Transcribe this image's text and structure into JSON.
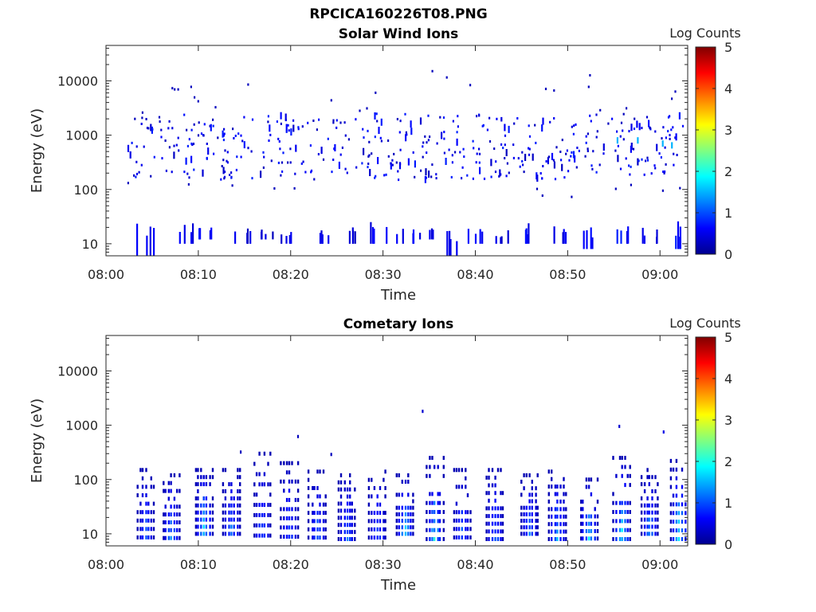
{
  "figure_title": "RPCICA160226T08.PNG",
  "chart_data": [
    {
      "type": "heatmap",
      "title": "Solar Wind Ions",
      "xlabel": "Time",
      "ylabel": "Energy (eV)",
      "x_ticks": [
        "08:00",
        "08:10",
        "08:20",
        "08:30",
        "08:40",
        "08:50",
        "09:00"
      ],
      "xlim": [
        "08:00",
        "09:03"
      ],
      "y_ticks": [
        "10",
        "100",
        "1000",
        "10000"
      ],
      "ylim": [
        6,
        45000
      ],
      "y_scale": "log",
      "colorbar": {
        "label": "Log Counts",
        "ticks": [
          "0",
          "1",
          "2",
          "3",
          "4",
          "5"
        ],
        "range": [
          0,
          5
        ],
        "colormap": "jet"
      },
      "low_energy_clusters": [
        {
          "t": 4.0,
          "e_lo": 6,
          "e_hi": 26,
          "v": 0.4
        },
        {
          "t": 8.5,
          "e_lo": 10,
          "e_hi": 26,
          "v": 0.4
        },
        {
          "t": 10.5,
          "e_lo": 12,
          "e_hi": 26,
          "v": 0.5
        },
        {
          "t": 14.5,
          "e_lo": 10,
          "e_hi": 22,
          "v": 0.3
        },
        {
          "t": 17.0,
          "e_lo": 12,
          "e_hi": 20,
          "v": 0.3
        },
        {
          "t": 20.0,
          "e_lo": 10,
          "e_hi": 20,
          "v": 0.3
        },
        {
          "t": 23.0,
          "e_lo": 10,
          "e_hi": 20,
          "v": 0.4
        },
        {
          "t": 26.0,
          "e_lo": 10,
          "e_hi": 20,
          "v": 0.3
        },
        {
          "t": 29.5,
          "e_lo": 10,
          "e_hi": 26,
          "v": 0.4
        },
        {
          "t": 32.5,
          "e_lo": 10,
          "e_hi": 20,
          "v": 0.4
        },
        {
          "t": 35.0,
          "e_lo": 12,
          "e_hi": 20,
          "v": 0.3
        },
        {
          "t": 37.5,
          "e_lo": 6,
          "e_hi": 22,
          "v": 0.4
        },
        {
          "t": 40.0,
          "e_lo": 10,
          "e_hi": 24,
          "v": 0.4
        },
        {
          "t": 43.0,
          "e_lo": 10,
          "e_hi": 20,
          "v": 0.3
        },
        {
          "t": 46.0,
          "e_lo": 10,
          "e_hi": 24,
          "v": 0.4
        },
        {
          "t": 49.0,
          "e_lo": 10,
          "e_hi": 24,
          "v": 0.4
        },
        {
          "t": 52.0,
          "e_lo": 8,
          "e_hi": 26,
          "v": 0.5
        },
        {
          "t": 55.5,
          "e_lo": 10,
          "e_hi": 26,
          "v": 0.5
        },
        {
          "t": 58.5,
          "e_lo": 10,
          "e_hi": 20,
          "v": 0.3
        },
        {
          "t": 61.5,
          "e_lo": 8,
          "e_hi": 28,
          "v": 0.5
        }
      ],
      "high_energy_band": {
        "e_lo": 150,
        "e_hi": 2500,
        "v": 0.3
      }
    },
    {
      "type": "heatmap",
      "title": "Cometary Ions",
      "xlabel": "Time",
      "ylabel": "Energy (eV)",
      "x_ticks": [
        "08:00",
        "08:10",
        "08:20",
        "08:30",
        "08:40",
        "08:50",
        "09:00"
      ],
      "xlim": [
        "08:00",
        "09:03"
      ],
      "y_ticks": [
        "10",
        "100",
        "1000",
        "10000"
      ],
      "ylim": [
        6,
        45000
      ],
      "y_scale": "log",
      "colorbar": {
        "label": "Log Counts",
        "ticks": [
          "0",
          "1",
          "2",
          "3",
          "4",
          "5"
        ],
        "range": [
          0,
          5
        ],
        "colormap": "jet"
      },
      "bursts": [
        {
          "t": 4.2,
          "e_lo": 6,
          "e_hi": 150,
          "peak": 1.0
        },
        {
          "t": 7.0,
          "e_lo": 6,
          "e_hi": 120,
          "peak": 1.3
        },
        {
          "t": 10.5,
          "e_lo": 10,
          "e_hi": 150,
          "peak": 1.6
        },
        {
          "t": 13.5,
          "e_lo": 10,
          "e_hi": 150,
          "peak": 1.0
        },
        {
          "t": 16.8,
          "e_lo": 6,
          "e_hi": 300,
          "peak": 1.0
        },
        {
          "t": 19.8,
          "e_lo": 6,
          "e_hi": 200,
          "peak": 1.0
        },
        {
          "t": 22.8,
          "e_lo": 6,
          "e_hi": 140,
          "peak": 1.1
        },
        {
          "t": 26.0,
          "e_lo": 8,
          "e_hi": 120,
          "peak": 1.0
        },
        {
          "t": 29.3,
          "e_lo": 6,
          "e_hi": 140,
          "peak": 1.0
        },
        {
          "t": 32.3,
          "e_lo": 10,
          "e_hi": 120,
          "peak": 1.5
        },
        {
          "t": 35.5,
          "e_lo": 8,
          "e_hi": 250,
          "peak": 1.7
        },
        {
          "t": 38.5,
          "e_lo": 6,
          "e_hi": 150,
          "peak": 1.0
        },
        {
          "t": 42.0,
          "e_lo": 8,
          "e_hi": 150,
          "peak": 1.0
        },
        {
          "t": 45.8,
          "e_lo": 10,
          "e_hi": 120,
          "peak": 1.0
        },
        {
          "t": 48.8,
          "e_lo": 8,
          "e_hi": 140,
          "peak": 1.2
        },
        {
          "t": 52.2,
          "e_lo": 6,
          "e_hi": 100,
          "peak": 1.8
        },
        {
          "t": 55.8,
          "e_lo": 8,
          "e_hi": 250,
          "peak": 1.7
        },
        {
          "t": 58.8,
          "e_lo": 10,
          "e_hi": 150,
          "peak": 1.2
        },
        {
          "t": 62.0,
          "e_lo": 8,
          "e_hi": 220,
          "peak": 1.8
        }
      ],
      "isolated_high_points": [
        {
          "t": 34.2,
          "e": 1800,
          "v": 0.4
        },
        {
          "t": 55.5,
          "e": 950,
          "v": 0.4
        },
        {
          "t": 60.3,
          "e": 750,
          "v": 0.5
        },
        {
          "t": 20.7,
          "e": 620,
          "v": 0.3
        },
        {
          "t": 14.5,
          "e": 320,
          "v": 0.3
        },
        {
          "t": 24.3,
          "e": 290,
          "v": 0.3
        }
      ]
    }
  ]
}
